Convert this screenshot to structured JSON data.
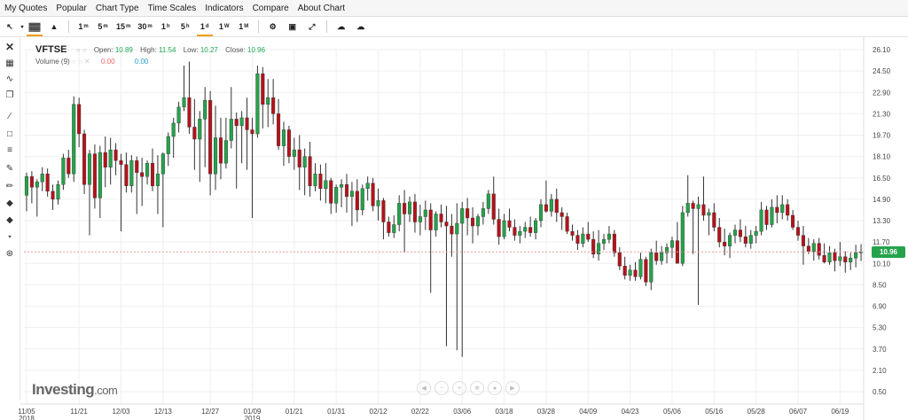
{
  "menu": [
    "My Quotes",
    "Popular",
    "Chart Type",
    "Time Scales",
    "Indicators",
    "Compare",
    "About Chart"
  ],
  "timescales": [
    {
      "n": "1",
      "s": "m"
    },
    {
      "n": "5",
      "s": "m"
    },
    {
      "n": "15",
      "s": "m"
    },
    {
      "n": "30",
      "s": "m"
    },
    {
      "n": "1",
      "s": "h"
    },
    {
      "n": "5",
      "s": "h"
    },
    {
      "n": "1",
      "s": "d"
    },
    {
      "n": "1",
      "s": "W"
    },
    {
      "n": "1",
      "s": "M"
    }
  ],
  "legend": {
    "symbol": "VFTSE",
    "open_label": "Open:",
    "open": "10.89",
    "high_label": "High:",
    "high": "11.54",
    "low_label": "Low:",
    "low": "10.27",
    "close_label": "Close:",
    "close": "10.96"
  },
  "volume": {
    "label": "Volume (9)",
    "v1": "0.00",
    "v2": "0.00"
  },
  "logo": {
    "main": "Investing",
    "suffix": ".com"
  },
  "current_price": "10.96",
  "colors": {
    "up": "#25a34a",
    "down": "#b5121b",
    "grid": "#efefef",
    "current": "#e89aa0",
    "accent": "#f39c12"
  },
  "chart_data": {
    "type": "candlestick",
    "y_ticks": [
      "26.10",
      "24.50",
      "22.90",
      "21.30",
      "19.70",
      "18.10",
      "16.50",
      "14.90",
      "13.30",
      "11.70",
      "10.10",
      "8.50",
      "6.90",
      "5.30",
      "3.70",
      "2.10",
      "0.50"
    ],
    "ylim": [
      0.5,
      26.1
    ],
    "x_ticks": [
      {
        "label": "11/05",
        "sub": "2018",
        "i": 0
      },
      {
        "label": "11/21",
        "sub": "",
        "i": 10
      },
      {
        "label": "12/03",
        "sub": "",
        "i": 18
      },
      {
        "label": "12/13",
        "sub": "",
        "i": 26
      },
      {
        "label": "12/27",
        "sub": "",
        "i": 35
      },
      {
        "label": "01/09",
        "sub": "2019",
        "i": 43
      },
      {
        "label": "01/21",
        "sub": "",
        "i": 51
      },
      {
        "label": "01/31",
        "sub": "",
        "i": 59
      },
      {
        "label": "02/12",
        "sub": "",
        "i": 67
      },
      {
        "label": "02/22",
        "sub": "",
        "i": 75
      },
      {
        "label": "03/06",
        "sub": "",
        "i": 83
      },
      {
        "label": "03/18",
        "sub": "",
        "i": 91
      },
      {
        "label": "03/28",
        "sub": "",
        "i": 99
      },
      {
        "label": "04/09",
        "sub": "",
        "i": 107
      },
      {
        "label": "04/23",
        "sub": "",
        "i": 115
      },
      {
        "label": "05/06",
        "sub": "",
        "i": 123
      },
      {
        "label": "05/16",
        "sub": "",
        "i": 131
      },
      {
        "label": "05/28",
        "sub": "",
        "i": 139
      },
      {
        "label": "06/07",
        "sub": "",
        "i": 147
      },
      {
        "label": "06/19",
        "sub": "",
        "i": 155
      }
    ],
    "ohlc": [
      [
        15.2,
        16.9,
        14.0,
        16.6
      ],
      [
        16.6,
        17.0,
        14.6,
        15.8
      ],
      [
        15.8,
        16.4,
        13.6,
        16.2
      ],
      [
        16.2,
        17.3,
        15.5,
        16.8
      ],
      [
        16.8,
        17.2,
        15.1,
        15.5
      ],
      [
        15.5,
        16.0,
        14.1,
        14.9
      ],
      [
        14.9,
        16.3,
        14.5,
        16.0
      ],
      [
        16.0,
        18.3,
        15.6,
        18.0
      ],
      [
        18.0,
        18.6,
        16.5,
        16.8
      ],
      [
        16.8,
        22.6,
        16.2,
        22.0
      ],
      [
        22.0,
        22.5,
        18.8,
        19.8
      ],
      [
        19.8,
        20.1,
        15.3,
        16.0
      ],
      [
        16.0,
        18.6,
        12.2,
        18.3
      ],
      [
        18.3,
        19.0,
        14.2,
        15.0
      ],
      [
        15.0,
        18.9,
        13.5,
        18.4
      ],
      [
        18.4,
        19.6,
        15.8,
        17.3
      ],
      [
        17.3,
        19.5,
        16.0,
        18.6
      ],
      [
        18.6,
        19.1,
        16.7,
        17.8
      ],
      [
        17.8,
        18.3,
        12.5,
        17.5
      ],
      [
        17.5,
        18.4,
        15.4,
        15.9
      ],
      [
        15.9,
        18.2,
        15.4,
        17.8
      ],
      [
        17.8,
        18.1,
        13.8,
        16.9
      ],
      [
        16.9,
        18.0,
        14.4,
        16.6
      ],
      [
        16.6,
        17.8,
        16.0,
        17.6
      ],
      [
        17.6,
        18.7,
        15.5,
        15.9
      ],
      [
        15.9,
        18.2,
        13.8,
        16.8
      ],
      [
        16.8,
        18.4,
        12.8,
        18.3
      ],
      [
        18.3,
        19.9,
        17.4,
        19.6
      ],
      [
        19.6,
        21.0,
        18.0,
        20.6
      ],
      [
        20.6,
        22.2,
        19.9,
        21.8
      ],
      [
        21.8,
        24.9,
        21.5,
        22.5
      ],
      [
        22.5,
        25.2,
        19.8,
        20.3
      ],
      [
        20.3,
        22.4,
        17.1,
        19.4
      ],
      [
        19.4,
        21.5,
        16.2,
        20.9
      ],
      [
        20.9,
        23.3,
        17.3,
        22.3
      ],
      [
        22.3,
        23.0,
        15.2,
        16.8
      ],
      [
        16.8,
        21.9,
        15.6,
        19.5
      ],
      [
        19.5,
        21.0,
        16.4,
        17.6
      ],
      [
        17.6,
        21.0,
        17.2,
        19.3
      ],
      [
        19.3,
        23.3,
        18.7,
        20.9
      ],
      [
        20.9,
        21.4,
        15.7,
        20.4
      ],
      [
        20.4,
        21.5,
        17.6,
        21.0
      ],
      [
        21.0,
        22.5,
        17.1,
        20.1
      ],
      [
        20.1,
        21.0,
        13.5,
        19.8
      ],
      [
        19.8,
        24.9,
        19.5,
        24.3
      ],
      [
        24.3,
        24.8,
        20.2,
        22.0
      ],
      [
        22.0,
        23.9,
        20.3,
        22.5
      ],
      [
        22.5,
        23.9,
        20.5,
        21.3
      ],
      [
        21.3,
        22.4,
        18.6,
        18.9
      ]
    ],
    "ohlc2": [
      [
        18.9,
        20.7,
        17.4,
        20.1
      ],
      [
        20.1,
        20.4,
        17.6,
        18.1
      ],
      [
        18.1,
        19.5,
        17.1,
        18.6
      ],
      [
        18.6,
        19.7,
        15.6,
        17.3
      ],
      [
        17.3,
        18.7,
        15.2,
        18.1
      ],
      [
        18.1,
        19.2,
        15.1,
        15.9
      ],
      [
        15.9,
        17.6,
        15.5,
        16.8
      ],
      [
        16.8,
        17.5,
        14.8,
        15.7
      ],
      [
        15.7,
        17.6,
        14.6,
        16.3
      ],
      [
        16.3,
        16.5,
        13.8,
        14.6
      ],
      [
        14.6,
        16.0,
        13.9,
        15.8
      ],
      [
        15.8,
        16.4,
        14.3,
        16.0
      ],
      [
        16.0,
        16.8,
        13.9,
        15.1
      ],
      [
        15.1,
        16.2,
        12.9,
        15.5
      ],
      [
        15.5,
        16.4,
        13.2,
        14.1
      ],
      [
        14.1,
        16.0,
        13.7,
        15.7
      ],
      [
        15.7,
        16.6,
        14.8,
        16.1
      ],
      [
        16.1,
        16.5,
        14.0,
        14.4
      ],
      [
        14.4,
        15.7,
        13.3,
        14.8
      ],
      [
        14.8,
        15.0,
        11.9,
        13.2
      ],
      [
        13.2,
        13.6,
        12.1,
        12.4
      ],
      [
        12.4,
        13.7,
        12.0,
        13.0
      ],
      [
        13.0,
        15.2,
        12.5,
        14.6
      ],
      [
        14.6,
        15.6,
        10.9,
        13.8
      ],
      [
        13.8,
        15.1,
        13.2,
        14.7
      ],
      [
        14.7,
        15.3,
        12.4,
        13.2
      ],
      [
        13.2,
        14.5,
        12.2,
        13.6
      ],
      [
        13.6,
        14.8,
        12.6,
        14.1
      ],
      [
        14.1,
        14.6,
        7.9,
        12.6
      ],
      [
        12.6,
        14.0,
        12.1,
        13.8
      ],
      [
        13.8,
        14.5,
        12.8,
        13.2
      ],
      [
        13.2,
        14.4,
        3.9,
        12.9
      ],
      [
        12.9,
        13.8,
        10.6,
        12.3
      ],
      [
        12.3,
        14.6,
        3.6,
        13.1
      ],
      [
        13.1,
        14.7,
        3.1,
        14.2
      ],
      [
        14.2,
        15.0,
        12.2,
        13.5
      ],
      [
        13.5,
        14.3,
        11.6,
        12.9
      ],
      [
        12.9,
        13.8,
        12.2,
        13.6
      ],
      [
        13.6,
        14.7,
        13.0,
        14.2
      ],
      [
        14.2,
        15.6,
        13.8,
        15.3
      ],
      [
        15.3,
        16.6,
        13.0,
        13.4
      ],
      [
        13.4,
        14.2,
        11.5,
        12.1
      ],
      [
        12.1,
        13.8,
        11.9,
        13.3
      ],
      [
        13.3,
        14.2,
        12.5,
        12.8
      ],
      [
        12.8,
        13.4,
        11.8,
        12.2
      ],
      [
        12.2,
        12.9,
        11.6,
        12.5
      ],
      [
        12.5,
        13.2,
        12.0,
        12.8
      ],
      [
        12.8,
        13.6,
        12.1,
        12.4
      ],
      [
        12.4,
        13.5,
        11.9,
        13.3
      ],
      [
        13.3,
        14.9,
        12.8,
        14.5
      ],
      [
        14.5,
        16.3,
        13.9,
        14.0
      ],
      [
        14.0,
        15.3,
        13.6,
        14.9
      ],
      [
        14.9,
        15.7,
        13.2,
        13.9
      ],
      [
        13.9,
        14.3,
        12.6,
        13.6
      ],
      [
        13.6,
        13.9,
        12.3,
        12.5
      ],
      [
        12.5,
        13.0,
        11.8,
        12.2
      ],
      [
        12.2,
        12.6,
        11.1,
        11.6
      ],
      [
        11.6,
        12.8,
        11.3,
        12.3
      ],
      [
        12.3,
        13.2,
        11.7,
        11.9
      ]
    ],
    "ohlc3": [
      [
        11.9,
        12.5,
        10.5,
        10.8
      ],
      [
        10.8,
        12.6,
        10.3,
        11.6
      ],
      [
        11.6,
        12.3,
        11.1,
        11.9
      ],
      [
        11.9,
        12.9,
        11.6,
        12.3
      ],
      [
        12.3,
        12.6,
        10.6,
        10.9
      ],
      [
        10.9,
        11.3,
        9.6,
        9.9
      ],
      [
        9.9,
        10.6,
        8.9,
        9.2
      ],
      [
        9.2,
        10.0,
        8.8,
        9.6
      ],
      [
        9.6,
        10.2,
        8.8,
        9.1
      ],
      [
        9.1,
        10.9,
        8.9,
        10.4
      ],
      [
        10.4,
        10.6,
        8.4,
        8.7
      ],
      [
        8.7,
        11.2,
        8.1,
        10.9
      ],
      [
        10.9,
        11.8,
        10.0,
        10.3
      ],
      [
        10.3,
        11.4,
        10.0,
        10.9
      ],
      [
        10.9,
        11.6,
        10.1,
        11.3
      ],
      [
        11.3,
        12.1,
        10.5,
        11.8
      ],
      [
        11.8,
        13.2,
        10.6,
        10.1
      ],
      [
        10.1,
        14.4,
        9.9,
        13.9
      ],
      [
        13.9,
        16.7,
        13.6,
        14.6
      ],
      [
        14.6,
        14.8,
        10.8,
        14.2
      ],
      [
        14.2,
        15.1,
        7.0,
        14.5
      ],
      [
        14.5,
        16.6,
        13.3,
        13.7
      ],
      [
        13.7,
        14.2,
        12.2,
        13.9
      ],
      [
        13.9,
        14.6,
        12.5,
        12.8
      ],
      [
        12.8,
        13.5,
        11.3,
        11.7
      ],
      [
        11.7,
        12.7,
        10.7,
        11.4
      ],
      [
        11.4,
        12.4,
        10.5,
        12.2
      ],
      [
        12.2,
        13.0,
        11.6,
        12.6
      ],
      [
        12.6,
        13.4,
        11.7,
        12.1
      ],
      [
        12.1,
        12.9,
        11.3,
        11.6
      ],
      [
        11.6,
        12.6,
        11.2,
        12.2
      ],
      [
        12.2,
        12.9,
        11.6,
        12.5
      ],
      [
        12.5,
        14.7,
        12.2,
        14.1
      ],
      [
        14.1,
        14.4,
        12.6,
        13.0
      ],
      [
        13.0,
        14.9,
        12.8,
        14.3
      ],
      [
        14.3,
        15.2,
        13.1,
        13.9
      ],
      [
        13.9,
        15.2,
        13.4,
        14.5
      ],
      [
        14.5,
        14.9,
        13.3,
        13.7
      ],
      [
        13.7,
        14.1,
        12.6,
        12.8
      ],
      [
        12.8,
        13.3,
        11.8,
        12.2
      ],
      [
        12.2,
        12.9,
        10.0,
        11.4
      ],
      [
        11.4,
        12.0,
        10.8,
        11.0
      ],
      [
        11.0,
        11.9,
        10.3,
        11.6
      ],
      [
        11.6,
        12.0,
        10.4,
        10.7
      ],
      [
        10.7,
        11.6,
        10.1,
        10.2
      ],
      [
        10.2,
        11.4,
        10.0,
        10.9
      ],
      [
        10.9,
        11.2,
        9.5,
        10.3
      ],
      [
        10.3,
        11.7,
        9.9,
        10.6
      ],
      [
        10.6,
        11.0,
        9.4,
        10.2
      ],
      [
        10.2,
        10.9,
        9.6,
        10.5
      ],
      [
        10.5,
        11.5,
        9.8,
        10.89
      ],
      [
        10.89,
        11.54,
        10.27,
        10.96
      ]
    ]
  }
}
